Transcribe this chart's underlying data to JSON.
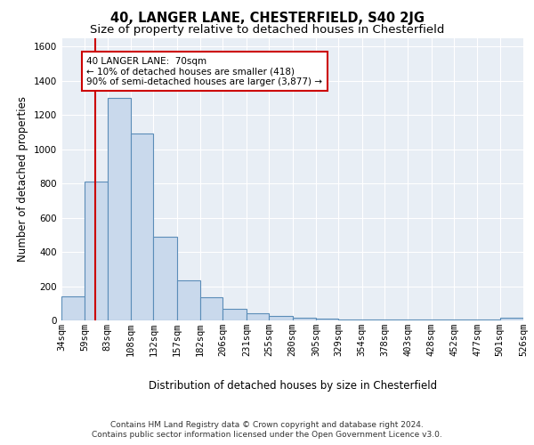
{
  "title_line1": "40, LANGER LANE, CHESTERFIELD, S40 2JG",
  "title_line2": "Size of property relative to detached houses in Chesterfield",
  "xlabel": "Distribution of detached houses by size in Chesterfield",
  "ylabel": "Number of detached properties",
  "bin_edges": [
    34,
    59,
    83,
    108,
    132,
    157,
    182,
    206,
    231,
    255,
    280,
    305,
    329,
    354,
    378,
    403,
    428,
    452,
    477,
    501,
    526
  ],
  "bar_heights": [
    140,
    810,
    1300,
    1090,
    490,
    235,
    135,
    70,
    40,
    25,
    15,
    10,
    5,
    5,
    5,
    5,
    5,
    5,
    5,
    15
  ],
  "bar_color": "#c9d9ec",
  "bar_edge_color": "#5b8db8",
  "bar_edge_width": 0.8,
  "red_line_x": 70,
  "red_line_color": "#cc0000",
  "annotation_text": "40 LANGER LANE:  70sqm\n← 10% of detached houses are smaller (418)\n90% of semi-detached houses are larger (3,877) →",
  "annotation_box_color": "#ffffff",
  "annotation_box_edge_color": "#cc0000",
  "ylim": [
    0,
    1650
  ],
  "yticks": [
    0,
    200,
    400,
    600,
    800,
    1000,
    1200,
    1400,
    1600
  ],
  "background_color": "#e8eef5",
  "grid_color": "#ffffff",
  "footer_line1": "Contains HM Land Registry data © Crown copyright and database right 2024.",
  "footer_line2": "Contains public sector information licensed under the Open Government Licence v3.0.",
  "title_fontsize": 10.5,
  "subtitle_fontsize": 9.5,
  "tick_fontsize": 7.5,
  "ylabel_fontsize": 8.5,
  "xlabel_fontsize": 8.5,
  "annotation_fontsize": 7.5,
  "footer_fontsize": 6.5
}
